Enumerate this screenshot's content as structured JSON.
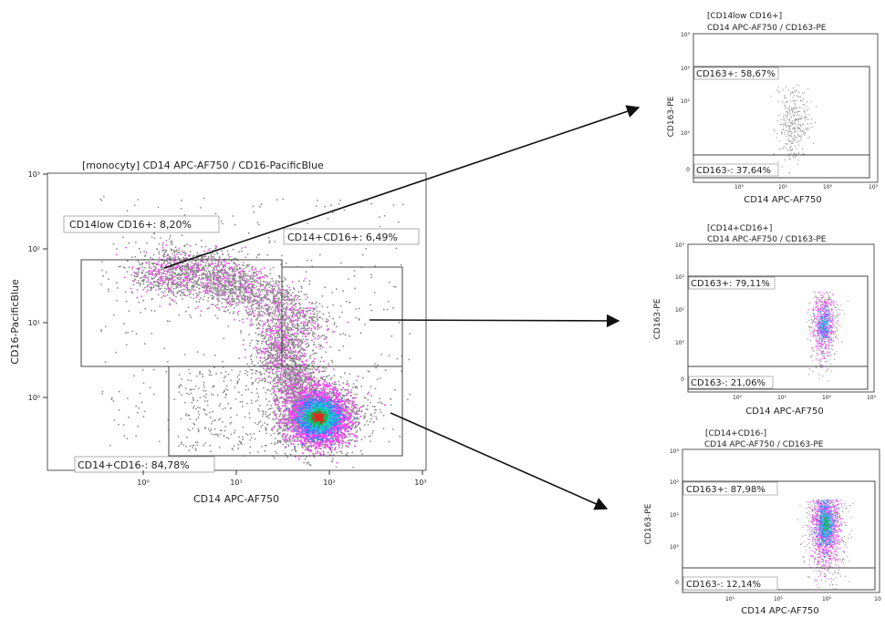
{
  "chart_data": [
    {
      "type": "scatter",
      "subtype": "flow-cytometry-density-dot-plot",
      "title": "[monocyty] CD14 APC-AF750 / CD16-PacificBlue",
      "xlabel": "CD14 APC-AF750",
      "ylabel": "CD16-PacificBlue",
      "xscale": "log",
      "yscale": "log",
      "xticks": [
        "10⁰",
        "10¹",
        "10²",
        "10³"
      ],
      "yticks": [
        "10⁰",
        "10¹",
        "10²",
        "10³"
      ],
      "gates": [
        {
          "name": "CD14low CD16+",
          "label": "CD14low CD16+: 8,20%",
          "percent": 8.2,
          "xrange": [
            0.22,
            35
          ],
          "yrange": [
            2.6,
            72
          ]
        },
        {
          "name": "CD14+CD16+",
          "label": "CD14+CD16+: 6,49%",
          "percent": 6.49,
          "xrange": [
            35,
            580
          ],
          "yrange": [
            2.6,
            60
          ]
        },
        {
          "name": "CD14+CD16-",
          "label": "CD14+CD16-: 84,78%",
          "percent": 84.78,
          "xrange": [
            2.0,
            580
          ],
          "yrange": [
            0.17,
            2.6
          ]
        }
      ]
    },
    {
      "type": "scatter",
      "subtype": "flow-cytometry-density-dot-plot",
      "title": "[CD14low CD16+]",
      "subtitle": "CD14 APC-AF750 / CD163-PE",
      "xlabel": "CD14 APC-AF750",
      "ylabel": "CD163-PE",
      "xscale": "log",
      "yscale": "log",
      "xticks": [
        "10⁰",
        "10¹",
        "10²",
        "10³"
      ],
      "yticks": [
        "0",
        "10⁰",
        "10¹",
        "10²",
        "10³"
      ],
      "gates": [
        {
          "name": "CD163+",
          "label": "CD163+: 58,67%",
          "percent": 58.67
        },
        {
          "name": "CD163-",
          "label": "CD163-: 37,64%",
          "percent": 37.64
        }
      ]
    },
    {
      "type": "scatter",
      "subtype": "flow-cytometry-density-dot-plot",
      "title": "[CD14+CD16+]",
      "subtitle": "CD14 APC-AF750 / CD163-PE",
      "xlabel": "CD14 APC-AF750",
      "ylabel": "CD163-PE",
      "xscale": "log",
      "yscale": "log",
      "xticks": [
        "10⁰",
        "10¹",
        "10²",
        "10³"
      ],
      "yticks": [
        "0",
        "10⁰",
        "10¹",
        "10²",
        "10³"
      ],
      "gates": [
        {
          "name": "CD163+",
          "label": "CD163+: 79,11%",
          "percent": 79.11
        },
        {
          "name": "CD163-",
          "label": "CD163-: 21,06%",
          "percent": 21.06
        }
      ]
    },
    {
      "type": "scatter",
      "subtype": "flow-cytometry-density-dot-plot",
      "title": "[CD14+CD16-]",
      "subtitle": "CD14 APC-AF750 / CD163-PE",
      "xlabel": "CD14 APC-AF750",
      "ylabel": "CD163-PE",
      "xscale": "log",
      "yscale": "log",
      "xticks": [
        "10⁰",
        "10¹",
        "10²",
        "10"
      ],
      "yticks": [
        "0",
        "10⁰",
        "10¹",
        "10²",
        "10³"
      ],
      "gates": [
        {
          "name": "CD163+",
          "label": "CD163+: 87,98%",
          "percent": 87.98
        },
        {
          "name": "CD163-",
          "label": "CD163-: 12,14%",
          "percent": 12.14
        }
      ]
    }
  ],
  "colors": {
    "axis": "#333333",
    "gate": "#444444",
    "sparse_dots": "#8a8a8a",
    "density_low": "#ff3cff",
    "density_mid": "#2f80ff",
    "density_high_cyan": "#17d3c7",
    "density_peak": "#22b14c",
    "density_max": "#e0281e",
    "arrow": "#111111"
  }
}
